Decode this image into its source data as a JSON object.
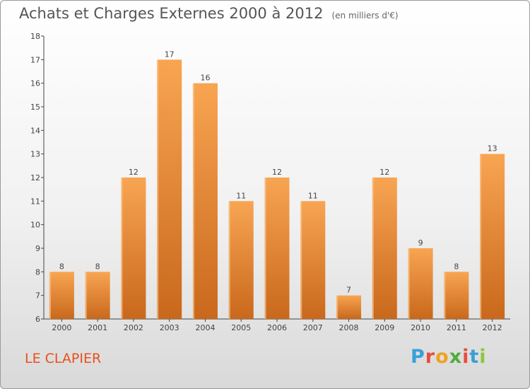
{
  "header": {
    "title": "Achats et Charges Externes 2000 à 2012",
    "subtitle": "(en milliers d'€)"
  },
  "footer": {
    "place": "LE CLAPIER",
    "brand_letters": [
      "P",
      "r",
      "o",
      "x",
      "i",
      "t",
      "i"
    ],
    "brand_colors": [
      "#3aa0d8",
      "#e84c3d",
      "#f0a21d",
      "#4fae3c",
      "#e84c3d",
      "#3aa0d8",
      "#8cc63f"
    ]
  },
  "colors": {
    "bar_light": "#f8a552",
    "bar_dark": "#c9681c"
  },
  "chart_data": {
    "type": "bar",
    "title": "Achats et Charges Externes 2000 à 2012",
    "categories": [
      "2000",
      "2001",
      "2002",
      "2003",
      "2004",
      "2005",
      "2006",
      "2007",
      "2008",
      "2009",
      "2010",
      "2011",
      "2012"
    ],
    "values": [
      8,
      8,
      12,
      17,
      16,
      11,
      12,
      11,
      7,
      12,
      9,
      8,
      13
    ],
    "xlabel": "",
    "ylabel": "",
    "ylim": [
      6,
      18
    ],
    "yticks": [
      6,
      7,
      8,
      9,
      10,
      11,
      12,
      13,
      14,
      15,
      16,
      17,
      18
    ],
    "grid": false,
    "legend": "none"
  }
}
